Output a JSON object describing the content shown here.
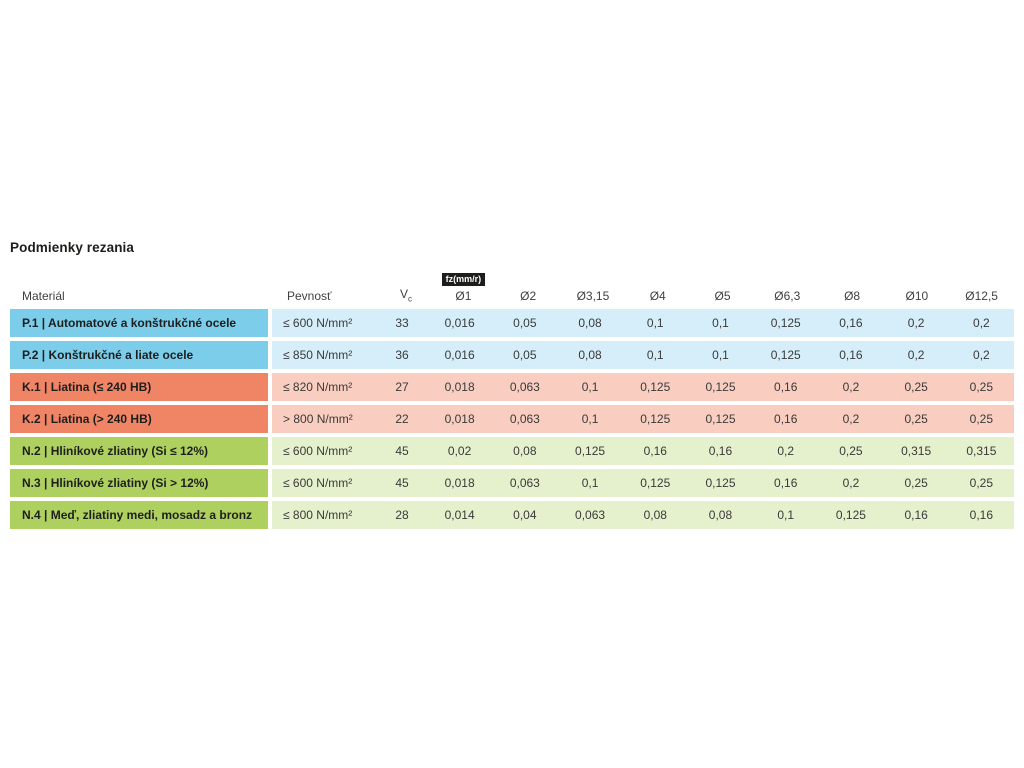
{
  "title": "Podmienky rezania",
  "colors": {
    "P": {
      "head": "#7bcde9",
      "tint": "#d6eefa"
    },
    "K": {
      "head": "#f08566",
      "tint": "#f9cdc0"
    },
    "N": {
      "head": "#aed05f",
      "tint": "#e5f0cd"
    }
  },
  "table": {
    "feed_badge": "fz(mm/r)",
    "headers": {
      "material": "Materiál",
      "strength": "Pevnosť",
      "vc_main": "V",
      "vc_sub": "c",
      "diameters": [
        "Ø1",
        "Ø2",
        "Ø3,15",
        "Ø4",
        "Ø5",
        "Ø6,3",
        "Ø8",
        "Ø10",
        "Ø12,5"
      ]
    },
    "rows": [
      {
        "group": "P",
        "material": "P.1 | Automatové a konštrukčné ocele",
        "strength": "≤ 600 N/mm²",
        "vc": "33",
        "values": [
          "0,016",
          "0,05",
          "0,08",
          "0,1",
          "0,1",
          "0,125",
          "0,16",
          "0,2",
          "0,2"
        ]
      },
      {
        "group": "P",
        "material": "P.2 | Konštrukčné a liate ocele",
        "strength": "≤ 850 N/mm²",
        "vc": "36",
        "values": [
          "0,016",
          "0,05",
          "0,08",
          "0,1",
          "0,1",
          "0,125",
          "0,16",
          "0,2",
          "0,2"
        ]
      },
      {
        "group": "K",
        "material": "K.1 | Liatina (≤ 240 HB)",
        "strength": "≤ 820 N/mm²",
        "vc": "27",
        "values": [
          "0,018",
          "0,063",
          "0,1",
          "0,125",
          "0,125",
          "0,16",
          "0,2",
          "0,25",
          "0,25"
        ]
      },
      {
        "group": "K",
        "material": "K.2 | Liatina (> 240 HB)",
        "strength": "> 800 N/mm²",
        "vc": "22",
        "values": [
          "0,018",
          "0,063",
          "0,1",
          "0,125",
          "0,125",
          "0,16",
          "0,2",
          "0,25",
          "0,25"
        ]
      },
      {
        "group": "N",
        "material": "N.2 | Hliníkové zliatiny (Si ≤ 12%)",
        "strength": "≤ 600 N/mm²",
        "vc": "45",
        "values": [
          "0,02",
          "0,08",
          "0,125",
          "0,16",
          "0,16",
          "0,2",
          "0,25",
          "0,315",
          "0,315"
        ]
      },
      {
        "group": "N",
        "material": "N.3 | Hliníkové zliatiny (Si > 12%)",
        "strength": "≤ 600 N/mm²",
        "vc": "45",
        "values": [
          "0,018",
          "0,063",
          "0,1",
          "0,125",
          "0,125",
          "0,16",
          "0,2",
          "0,25",
          "0,25"
        ]
      },
      {
        "group": "N",
        "material": "N.4 | Meď, zliatiny medi, mosadz a bronz",
        "strength": "≤ 800 N/mm²",
        "vc": "28",
        "values": [
          "0,014",
          "0,04",
          "0,063",
          "0,08",
          "0,08",
          "0,1",
          "0,125",
          "0,16",
          "0,16"
        ]
      }
    ]
  }
}
